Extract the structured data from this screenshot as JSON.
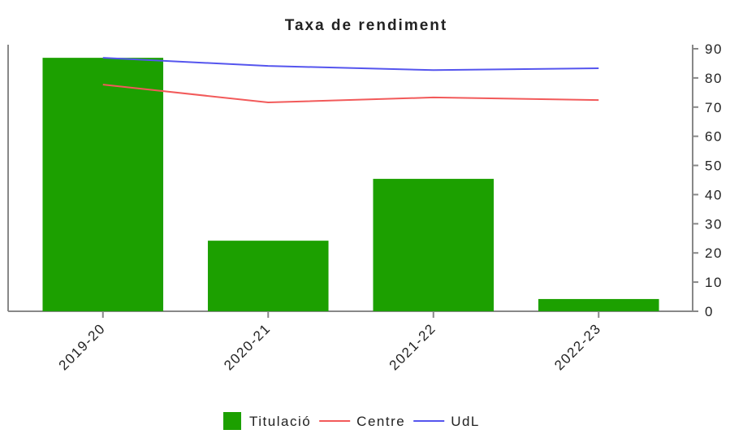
{
  "chart_data": {
    "type": "bar",
    "title": "Taxa de rendiment",
    "categories": [
      "2019-20",
      "2020-21",
      "2021-22",
      "2022-23"
    ],
    "series": [
      {
        "name": "Titulació",
        "type": "bar",
        "color": "#1ca000",
        "values": [
          86.9,
          24.2,
          45.4,
          4.2
        ]
      },
      {
        "name": "Centre",
        "type": "line",
        "color": "#f25a5a",
        "values": [
          77.7,
          71.6,
          73.3,
          72.4
        ]
      },
      {
        "name": "UdL",
        "type": "line",
        "color": "#5555ee",
        "values": [
          86.9,
          84.1,
          82.7,
          83.3
        ]
      }
    ],
    "ylim": [
      0,
      90
    ],
    "yticks": [
      0,
      10,
      20,
      30,
      40,
      50,
      60,
      70,
      80,
      90
    ],
    "grid": false,
    "legend": "bottom"
  }
}
